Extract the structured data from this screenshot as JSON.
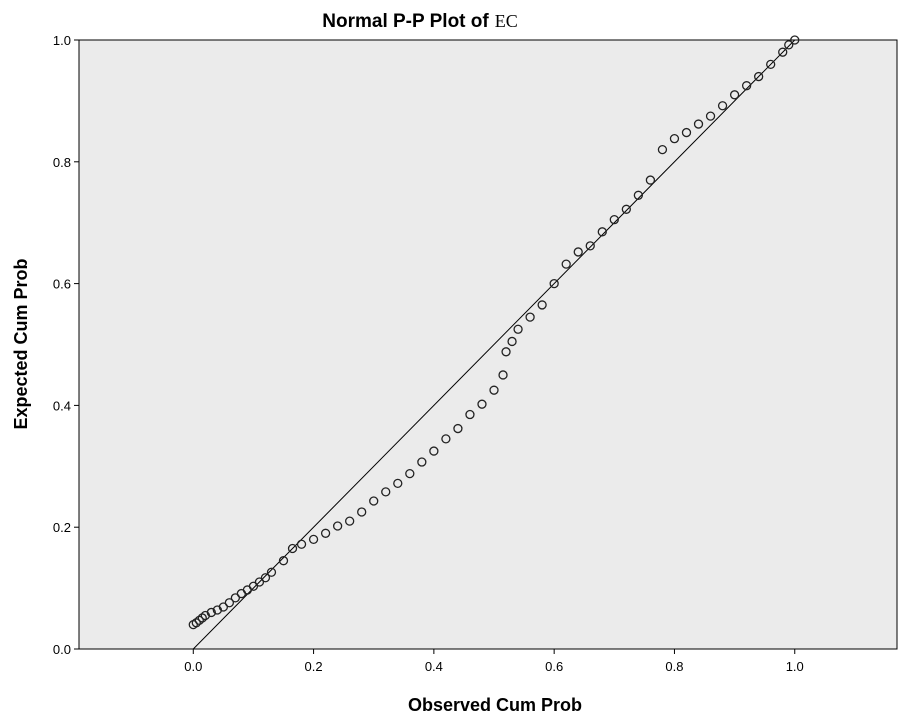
{
  "chart_data": {
    "type": "scatter",
    "title": "Normal P-P Plot of",
    "title_variable": "EC",
    "xlabel": "Observed Cum Prob",
    "ylabel": "Expected Cum Prob",
    "xlim": [
      -0.19,
      1.17
    ],
    "ylim": [
      0.0,
      1.0
    ],
    "x_ticks": [
      "0.0",
      "0.2",
      "0.4",
      "0.6",
      "0.8",
      "1.0"
    ],
    "y_ticks": [
      "0.0",
      "0.2",
      "0.4",
      "0.6",
      "0.8",
      "1.0"
    ],
    "grid": false,
    "plot_background": "#ebebeb",
    "reference_line": {
      "from": [
        0.0,
        0.0
      ],
      "to": [
        1.0,
        1.0
      ]
    },
    "series": [
      {
        "marker": "open-circle",
        "points": [
          [
            0.0,
            0.04
          ],
          [
            0.005,
            0.043
          ],
          [
            0.01,
            0.047
          ],
          [
            0.015,
            0.051
          ],
          [
            0.02,
            0.055
          ],
          [
            0.03,
            0.06
          ],
          [
            0.04,
            0.064
          ],
          [
            0.05,
            0.069
          ],
          [
            0.06,
            0.076
          ],
          [
            0.07,
            0.084
          ],
          [
            0.08,
            0.091
          ],
          [
            0.09,
            0.097
          ],
          [
            0.1,
            0.103
          ],
          [
            0.11,
            0.11
          ],
          [
            0.12,
            0.117
          ],
          [
            0.13,
            0.126
          ],
          [
            0.15,
            0.145
          ],
          [
            0.165,
            0.165
          ],
          [
            0.18,
            0.172
          ],
          [
            0.2,
            0.18
          ],
          [
            0.22,
            0.19
          ],
          [
            0.24,
            0.202
          ],
          [
            0.26,
            0.21
          ],
          [
            0.28,
            0.225
          ],
          [
            0.3,
            0.243
          ],
          [
            0.32,
            0.258
          ],
          [
            0.34,
            0.272
          ],
          [
            0.36,
            0.288
          ],
          [
            0.38,
            0.307
          ],
          [
            0.4,
            0.325
          ],
          [
            0.42,
            0.345
          ],
          [
            0.44,
            0.362
          ],
          [
            0.46,
            0.385
          ],
          [
            0.48,
            0.402
          ],
          [
            0.5,
            0.425
          ],
          [
            0.515,
            0.45
          ],
          [
            0.52,
            0.488
          ],
          [
            0.53,
            0.505
          ],
          [
            0.54,
            0.525
          ],
          [
            0.56,
            0.545
          ],
          [
            0.58,
            0.565
          ],
          [
            0.6,
            0.6
          ],
          [
            0.62,
            0.632
          ],
          [
            0.64,
            0.652
          ],
          [
            0.66,
            0.662
          ],
          [
            0.68,
            0.685
          ],
          [
            0.7,
            0.705
          ],
          [
            0.72,
            0.722
          ],
          [
            0.74,
            0.745
          ],
          [
            0.76,
            0.77
          ],
          [
            0.78,
            0.82
          ],
          [
            0.8,
            0.838
          ],
          [
            0.82,
            0.848
          ],
          [
            0.84,
            0.862
          ],
          [
            0.86,
            0.875
          ],
          [
            0.88,
            0.892
          ],
          [
            0.9,
            0.91
          ],
          [
            0.92,
            0.925
          ],
          [
            0.94,
            0.94
          ],
          [
            0.96,
            0.96
          ],
          [
            0.98,
            0.98
          ],
          [
            0.99,
            0.992
          ],
          [
            1.0,
            1.0
          ]
        ]
      }
    ]
  }
}
